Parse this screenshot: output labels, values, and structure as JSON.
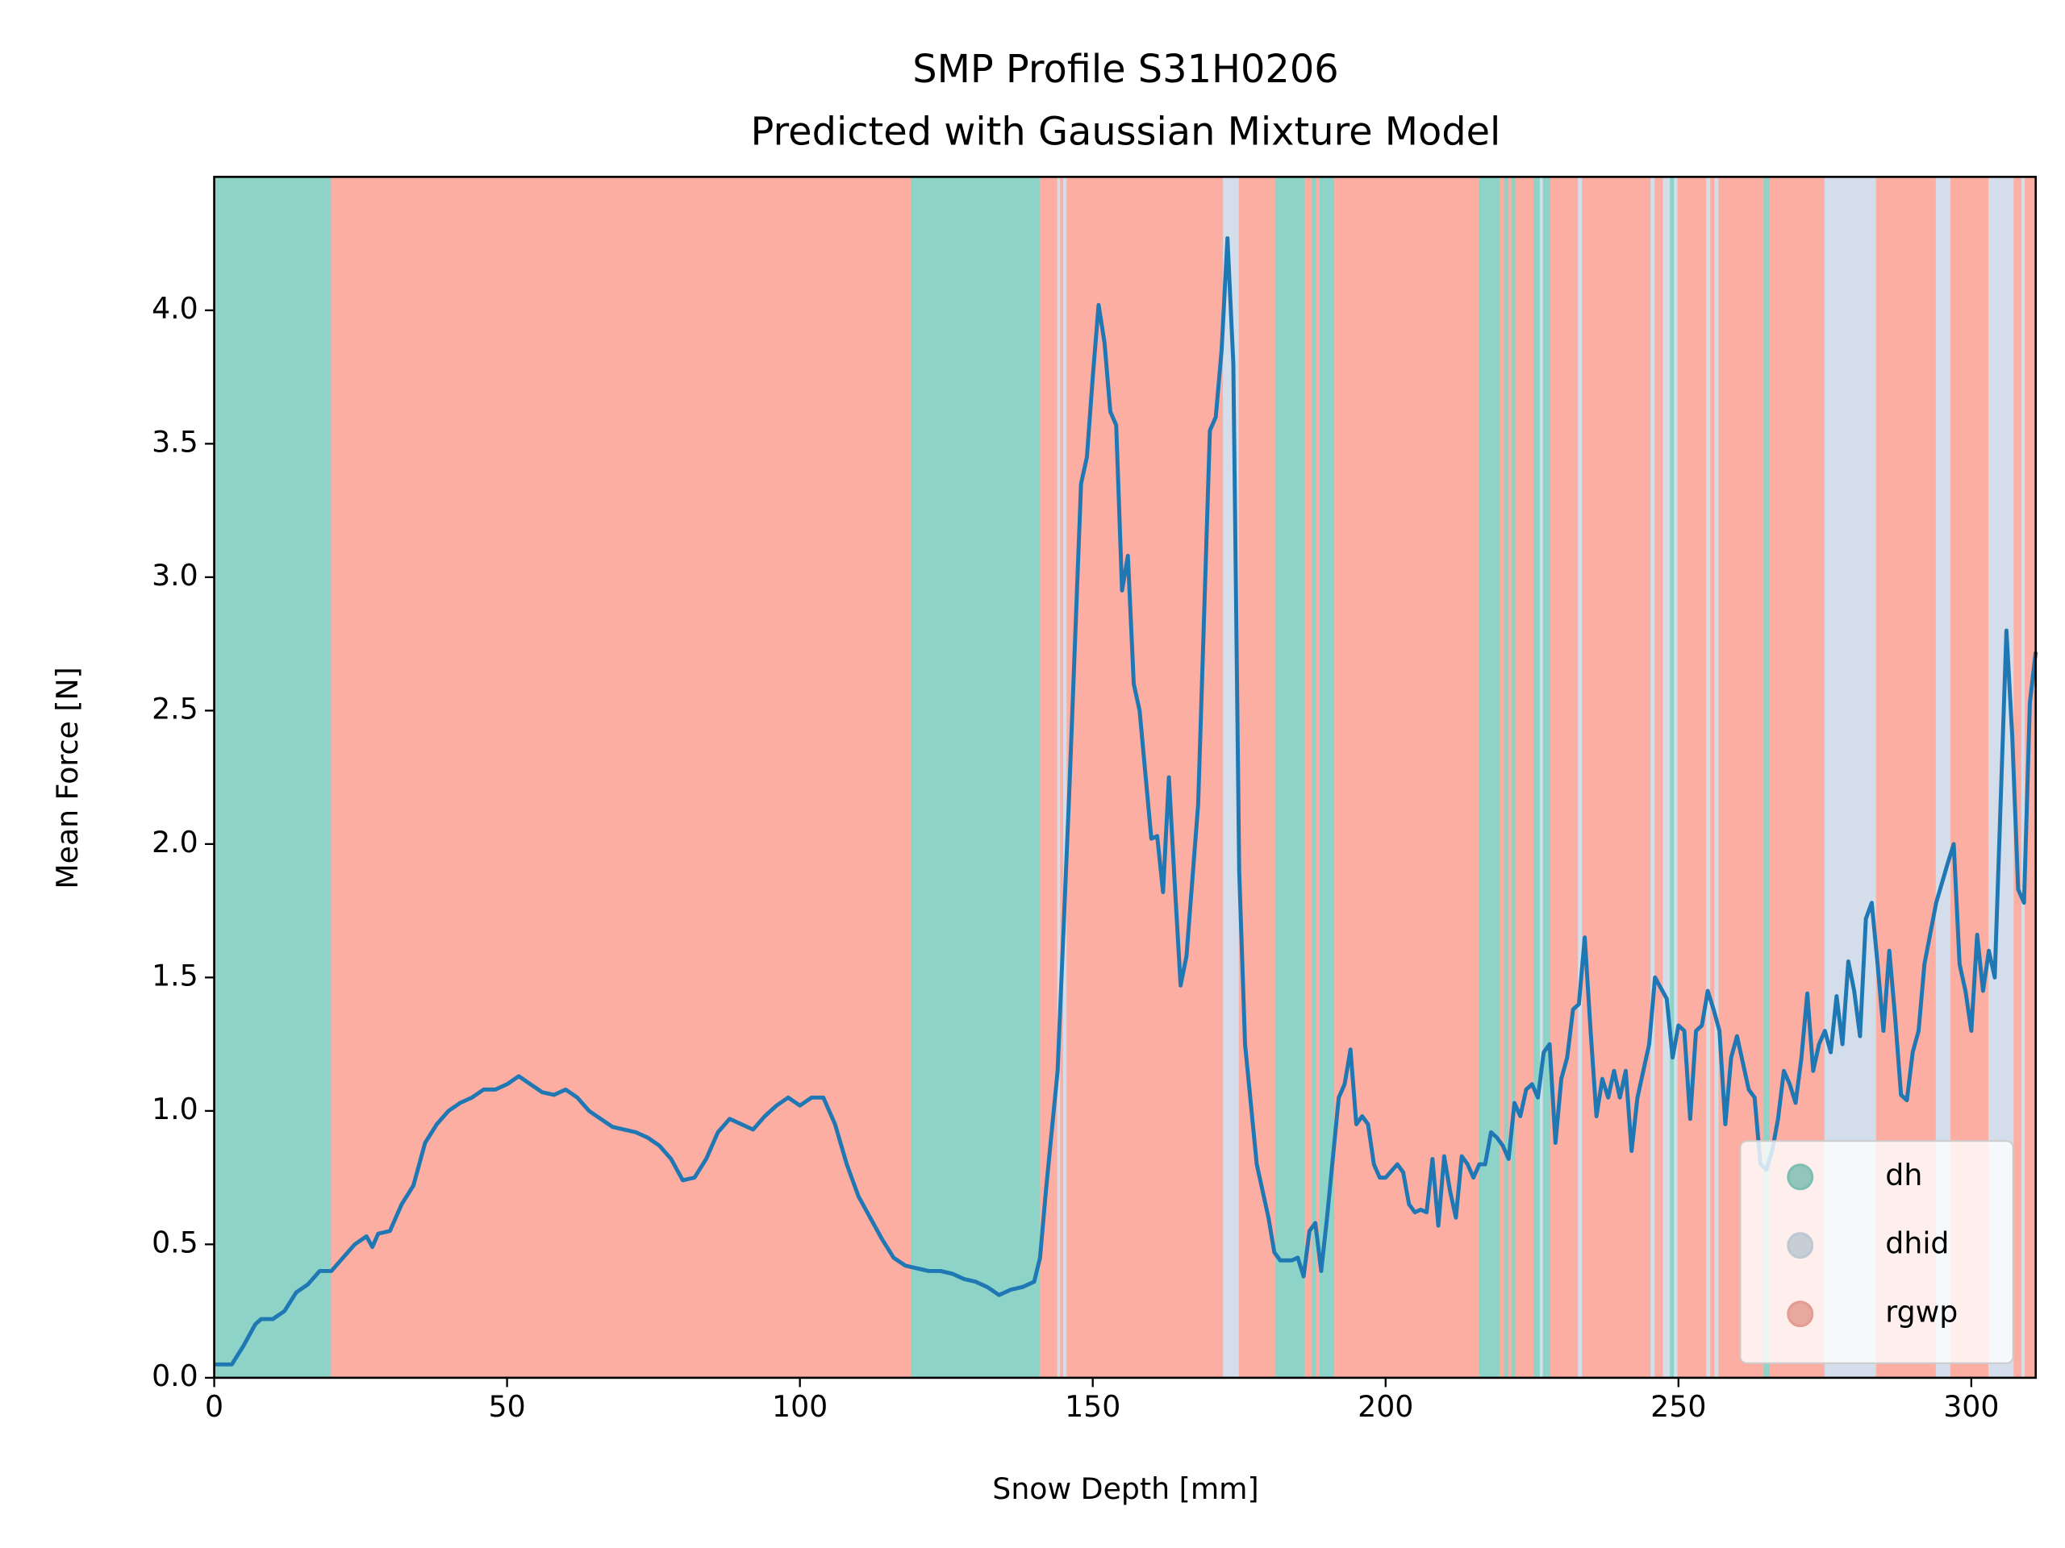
{
  "chart_data": {
    "type": "line",
    "title": "SMP Profile S31H0206",
    "subtitle": "Predicted with Gaussian Mixture Model",
    "x_label": "Snow Depth [mm]",
    "y_label": "Mean Force [N]",
    "xlim": [
      0,
      311
    ],
    "ylim": [
      0,
      4.5
    ],
    "xticks": [
      0,
      50,
      100,
      150,
      200,
      250,
      300
    ],
    "yticks": [
      {
        "value": 0,
        "label": "0.0"
      },
      {
        "value": 0.5,
        "label": "0.5"
      },
      {
        "value": 1,
        "label": "1.0"
      },
      {
        "value": 1.5,
        "label": "1.5"
      },
      {
        "value": 2,
        "label": "2.0"
      },
      {
        "value": 2.5,
        "label": "2.5"
      },
      {
        "value": 3,
        "label": "3.0"
      },
      {
        "value": 3.5,
        "label": "3.5"
      },
      {
        "value": 4,
        "label": "4.0"
      }
    ],
    "legend_position": "lower right",
    "classes": [
      {
        "name": "dh",
        "color": "#8dd3c7"
      },
      {
        "name": "dhid",
        "color": "#d3deea"
      },
      {
        "name": "rgwp",
        "color": "#fcaea2"
      }
    ],
    "segments": {
      "starts": [
        0,
        20,
        119,
        141,
        144,
        144.5,
        145,
        145.6,
        172.3,
        175,
        181.2,
        186.2,
        187.5,
        188.2,
        188.8,
        191.3,
        216,
        219.5,
        220.3,
        221,
        221.6,
        222.2,
        225.3,
        226.4,
        226.9,
        228.2,
        232.9,
        233.6,
        245.3,
        246,
        247.4,
        248.6,
        249.3,
        249.9,
        254.8,
        255.5,
        256.2,
        256.9,
        264.6,
        265.6,
        275,
        283.8,
        294,
        296.5,
        303,
        307.3,
        308.6,
        309.2
      ],
      "ends": [
        20,
        119,
        141,
        144,
        144.5,
        145,
        145.6,
        172.3,
        175,
        181.2,
        186.2,
        187.5,
        188.2,
        188.8,
        191.3,
        216,
        219.5,
        220.3,
        221,
        221.6,
        222.2,
        225.3,
        226.4,
        226.9,
        228.2,
        232.9,
        233.6,
        245.3,
        246,
        247.4,
        248.6,
        249.3,
        249.9,
        254.8,
        255.5,
        256.2,
        256.9,
        264.6,
        265.6,
        275,
        283.8,
        294,
        296.5,
        303,
        307.3,
        308.6,
        309.2,
        311
      ],
      "classes": [
        "dh",
        "rgwp",
        "dh",
        "rgwp",
        "dhid",
        "rgwp",
        "dhid",
        "rgwp",
        "dhid",
        "rgwp",
        "dh",
        "rgwp",
        "dh",
        "rgwp",
        "dh",
        "rgwp",
        "dh",
        "rgwp",
        "dh",
        "rgwp",
        "dh",
        "rgwp",
        "dh",
        "dhid",
        "dh",
        "rgwp",
        "dhid",
        "rgwp",
        "dhid",
        "rgwp",
        "dhid",
        "dh",
        "dhid",
        "rgwp",
        "dhid",
        "rgwp",
        "dhid",
        "rgwp",
        "dh",
        "rgwp",
        "dhid",
        "rgwp",
        "dhid",
        "rgwp",
        "dhid",
        "rgwp",
        "dhid",
        "rgwp"
      ]
    },
    "series": [
      {
        "color": "#1f77b4",
        "x": [
          0,
          3,
          5,
          7,
          8,
          10,
          12,
          14,
          16,
          18,
          20,
          22,
          24,
          26,
          27,
          28,
          30,
          32,
          34,
          36,
          38,
          40,
          42,
          44,
          46,
          48,
          50,
          52,
          54,
          56,
          58,
          60,
          62,
          64,
          66,
          68,
          70,
          72,
          74,
          76,
          78,
          80,
          82,
          84,
          86,
          88,
          90,
          92,
          94,
          96,
          98,
          100,
          102,
          104,
          106,
          108,
          110,
          112,
          114,
          116,
          118,
          120,
          122,
          124,
          126,
          128,
          130,
          132,
          134,
          136,
          138,
          140,
          141,
          142,
          144,
          146,
          148,
          149,
          150,
          151,
          152,
          153,
          154,
          155,
          156,
          157,
          158,
          160,
          161,
          162,
          163,
          164,
          165,
          166,
          168,
          170,
          171,
          172,
          173,
          174,
          175,
          176,
          178,
          180,
          181,
          182,
          184,
          185,
          186,
          187,
          188,
          189,
          190,
          192,
          193,
          194,
          195,
          196,
          197,
          198,
          199,
          200,
          202,
          203,
          204,
          205,
          206,
          207,
          208,
          209,
          210,
          211,
          212,
          213,
          214,
          215,
          216,
          217,
          218,
          219,
          220,
          221,
          222,
          223,
          224,
          225,
          226,
          227,
          228,
          229,
          230,
          231,
          232,
          233,
          234,
          235,
          236,
          237,
          238,
          239,
          240,
          241,
          242,
          243,
          245,
          246,
          248,
          249,
          250,
          251,
          252,
          253,
          254,
          255,
          256,
          257,
          258,
          259,
          260,
          262,
          263,
          264,
          265,
          266,
          267,
          268,
          269,
          270,
          271,
          272,
          273,
          274,
          275,
          276,
          277,
          278,
          279,
          280,
          281,
          282,
          283,
          284,
          285,
          286,
          287,
          288,
          289,
          290,
          291,
          292,
          294,
          296,
          297,
          298,
          299,
          300,
          301,
          302,
          303,
          304,
          305,
          306,
          307,
          308,
          309,
          310,
          311
        ],
        "values": [
          0.05,
          0.05,
          0.12,
          0.2,
          0.22,
          0.22,
          0.25,
          0.32,
          0.35,
          0.4,
          0.4,
          0.45,
          0.5,
          0.53,
          0.49,
          0.54,
          0.55,
          0.65,
          0.72,
          0.88,
          0.95,
          1.0,
          1.03,
          1.05,
          1.08,
          1.08,
          1.1,
          1.13,
          1.1,
          1.07,
          1.06,
          1.08,
          1.05,
          1.0,
          0.97,
          0.94,
          0.93,
          0.92,
          0.9,
          0.87,
          0.82,
          0.74,
          0.75,
          0.82,
          0.92,
          0.97,
          0.95,
          0.93,
          0.98,
          1.02,
          1.05,
          1.02,
          1.05,
          1.05,
          0.95,
          0.8,
          0.68,
          0.6,
          0.52,
          0.45,
          0.42,
          0.41,
          0.4,
          0.4,
          0.39,
          0.37,
          0.36,
          0.34,
          0.31,
          0.33,
          0.34,
          0.36,
          0.45,
          0.7,
          1.15,
          2.2,
          3.35,
          3.45,
          3.75,
          4.02,
          3.88,
          3.62,
          3.57,
          2.95,
          3.08,
          2.6,
          2.5,
          2.02,
          2.03,
          1.82,
          2.25,
          1.85,
          1.47,
          1.58,
          2.15,
          3.55,
          3.6,
          3.85,
          4.27,
          3.8,
          1.9,
          1.25,
          0.8,
          0.6,
          0.47,
          0.44,
          0.44,
          0.45,
          0.38,
          0.55,
          0.58,
          0.4,
          0.6,
          1.05,
          1.1,
          1.23,
          0.95,
          0.98,
          0.95,
          0.8,
          0.75,
          0.75,
          0.8,
          0.77,
          0.65,
          0.62,
          0.63,
          0.62,
          0.82,
          0.57,
          0.83,
          0.7,
          0.6,
          0.83,
          0.8,
          0.75,
          0.8,
          0.8,
          0.92,
          0.9,
          0.87,
          0.82,
          1.03,
          0.98,
          1.08,
          1.1,
          1.05,
          1.22,
          1.25,
          0.88,
          1.12,
          1.2,
          1.38,
          1.4,
          1.65,
          1.3,
          0.98,
          1.12,
          1.05,
          1.15,
          1.05,
          1.15,
          0.85,
          1.05,
          1.25,
          1.5,
          1.42,
          1.2,
          1.32,
          1.3,
          0.97,
          1.3,
          1.32,
          1.45,
          1.38,
          1.3,
          0.95,
          1.2,
          1.28,
          1.08,
          1.05,
          0.8,
          0.78,
          0.85,
          0.97,
          1.15,
          1.1,
          1.03,
          1.2,
          1.44,
          1.15,
          1.25,
          1.3,
          1.22,
          1.43,
          1.25,
          1.56,
          1.45,
          1.28,
          1.72,
          1.78,
          1.55,
          1.3,
          1.6,
          1.35,
          1.06,
          1.04,
          1.22,
          1.3,
          1.55,
          1.78,
          1.93,
          2.0,
          1.55,
          1.45,
          1.3,
          1.66,
          1.45,
          1.6,
          1.5,
          2.15,
          2.8,
          2.4,
          1.83,
          1.78,
          2.53,
          2.72
        ]
      }
    ]
  }
}
